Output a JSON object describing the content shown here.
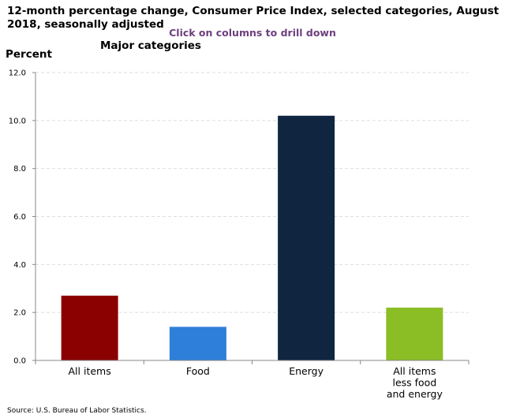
{
  "header": {
    "title": "12-month percentage change, Consumer Price Index, selected categories, August 2018, seasonally adjusted",
    "drill_hint": "Click on columns to drill down"
  },
  "footer": {
    "source": "Source: U.S. Bureau of Labor Statistics."
  },
  "chart_data": {
    "type": "bar",
    "title": "12-month percentage change, Consumer Price Index, selected categories, August 2018, seasonally adjusted",
    "subtitle": "Major categories",
    "ylabel": "Percent",
    "xlabel": "",
    "ylim": [
      0,
      12
    ],
    "yticks": [
      "0.0",
      "2.0",
      "4.0",
      "6.0",
      "8.0",
      "10.0",
      "12.0"
    ],
    "grid": true,
    "legend": "none",
    "categories": [
      [
        "All items"
      ],
      [
        "Food"
      ],
      [
        "Energy"
      ],
      [
        "All items",
        "less food",
        "and energy"
      ]
    ],
    "values": [
      2.7,
      1.4,
      10.2,
      2.2
    ],
    "colors": [
      "#8b0000",
      "#2e7fd9",
      "#0f2540",
      "#8bbd24"
    ]
  }
}
